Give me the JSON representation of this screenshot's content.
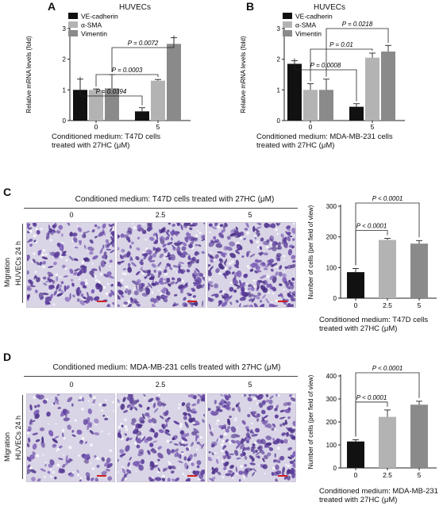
{
  "panels": {
    "A": {
      "letter": "A",
      "title": "HUVECs",
      "caption_line1": "Conditioned medium: T47D cells",
      "caption_line2": "treated with 27HC (μM)"
    },
    "B": {
      "letter": "B",
      "title": "HUVECs",
      "caption_line1": "Conditioned medium: MDA-MB-231 cells",
      "caption_line2": "treated with 27HC (μM)"
    },
    "C": {
      "letter": "C",
      "header": "Conditioned medium: T47D cells treated with 27HC (μM)",
      "col_labels": [
        "0",
        "2.5",
        "5"
      ],
      "row_label_1": "Migration",
      "row_label_2": "HUVECs  24 h",
      "caption_line1": "Conditioned medium: T47D cells",
      "caption_line2": "treated with 27HC (μM)"
    },
    "D": {
      "letter": "D",
      "header": "Conditioned medium: MDA-MB-231 cells treated with 27HC (μM)",
      "col_labels": [
        "0",
        "2.5",
        "5"
      ],
      "row_label_1": "Migration",
      "row_label_2": "HUVECs  24 h",
      "caption_line1": "Conditioned medium: MDA-MB-231",
      "caption_line2": "treated with 27HC (μM)"
    }
  },
  "colors": {
    "black": "#111111",
    "light_gray": "#b3b3b3",
    "dark_gray": "#8a8a8a",
    "stain": "#5b3d9a"
  },
  "chart_data": [
    {
      "id": "A",
      "type": "bar",
      "categories": [
        "0",
        "5"
      ],
      "series": [
        {
          "name": "VE-cadherin",
          "color": "#111111",
          "values": [
            1.0,
            0.3
          ],
          "errors": [
            0.35,
            0.12
          ]
        },
        {
          "name": "α-SMA",
          "color": "#b3b3b3",
          "values": [
            1.0,
            1.3
          ],
          "errors": [
            0.03,
            0.04
          ]
        },
        {
          "name": "Vimentin",
          "color": "#8a8a8a",
          "values": [
            1.05,
            2.5
          ],
          "errors": [
            0.45,
            0.2
          ]
        }
      ],
      "ylabel": "Relative mRNA levels (fold)",
      "ylim": [
        0,
        3
      ],
      "yticks": [
        "0",
        "1",
        "2",
        "3"
      ],
      "annotations": [
        {
          "text": "P = 0.0394",
          "from": [
            0,
            0
          ],
          "to": [
            1,
            0
          ]
        },
        {
          "text": "P = 0.0003",
          "from": [
            0,
            1
          ],
          "to": [
            1,
            1
          ]
        },
        {
          "text": "P = 0.0072",
          "from": [
            0,
            2
          ],
          "to": [
            1,
            2
          ]
        }
      ],
      "legend": "top-left"
    },
    {
      "id": "B",
      "type": "bar",
      "categories": [
        "0",
        "5"
      ],
      "series": [
        {
          "name": "VE-cadherin",
          "color": "#111111",
          "values": [
            1.85,
            0.45
          ],
          "errors": [
            0.1,
            0.1
          ]
        },
        {
          "name": "α-SMA",
          "color": "#b3b3b3",
          "values": [
            1.0,
            2.05
          ],
          "errors": [
            0.2,
            0.15
          ]
        },
        {
          "name": "Vimentin",
          "color": "#8a8a8a",
          "values": [
            1.0,
            2.25
          ],
          "errors": [
            0.35,
            0.2
          ]
        }
      ],
      "ylabel": "Relative mRNA levels (fold)",
      "ylim": [
        0,
        3
      ],
      "yticks": [
        "0",
        "1",
        "2",
        "3"
      ],
      "annotations": [
        {
          "text": "P = 0.0008",
          "from": [
            0,
            0
          ],
          "to": [
            1,
            0
          ]
        },
        {
          "text": "P = 0.01",
          "from": [
            0,
            1
          ],
          "to": [
            1,
            1
          ]
        },
        {
          "text": "P = 0.0218",
          "from": [
            0,
            2
          ],
          "to": [
            1,
            2
          ]
        }
      ],
      "legend": "top-left"
    },
    {
      "id": "C",
      "type": "bar",
      "categories": [
        "0",
        "2.5",
        "5"
      ],
      "colors": [
        "#111111",
        "#b3b3b3",
        "#8a8a8a"
      ],
      "values": [
        85,
        190,
        178
      ],
      "errors": [
        12,
        5,
        10
      ],
      "ylabel": "Number of cells (per field of view)",
      "ylim": [
        0,
        300
      ],
      "yticks": [
        "0",
        "100",
        "200",
        "300"
      ],
      "annotations": [
        {
          "text": "P < 0.0001",
          "from": 0,
          "to": 1
        },
        {
          "text": "P < 0.0001",
          "from": 0,
          "to": 2
        }
      ]
    },
    {
      "id": "D",
      "type": "bar",
      "categories": [
        "0",
        "2.5",
        "5"
      ],
      "colors": [
        "#111111",
        "#b3b3b3",
        "#8a8a8a"
      ],
      "values": [
        115,
        222,
        275
      ],
      "errors": [
        8,
        30,
        15
      ],
      "ylabel": "Number of cells (per field of view)",
      "ylim": [
        0,
        400
      ],
      "yticks": [
        "0",
        "100",
        "200",
        "300",
        "400"
      ],
      "annotations": [
        {
          "text": "P < 0.0001",
          "from": 0,
          "to": 1
        },
        {
          "text": "P < 0.0001",
          "from": 0,
          "to": 2
        }
      ]
    }
  ]
}
